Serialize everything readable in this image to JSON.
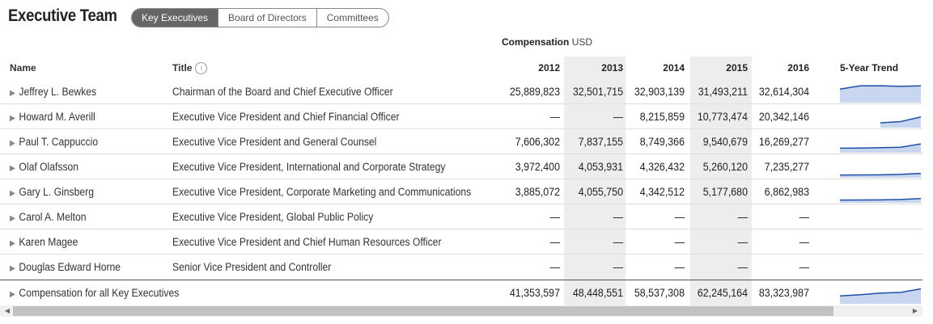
{
  "page_title": "Executive Team",
  "tabs": [
    {
      "label": "Key Executives",
      "active": true
    },
    {
      "label": "Board of Directors",
      "active": false
    },
    {
      "label": "Committees",
      "active": false
    }
  ],
  "compensation_caption": {
    "label": "Compensation",
    "unit": "USD"
  },
  "columns": {
    "name": "Name",
    "title": "Title",
    "title_info_icon": "info-icon",
    "years": [
      "2012",
      "2013",
      "2014",
      "2015",
      "2016"
    ],
    "trend": "5-Year Trend"
  },
  "rows": [
    {
      "name": "Jeffrey L. Bewkes",
      "title": "Chairman of the Board and Chief Executive Officer",
      "values": [
        "25,889,823",
        "32,501,715",
        "32,903,139",
        "31,493,211",
        "32,614,304"
      ]
    },
    {
      "name": "Howard M. Averill",
      "title": "Executive Vice President and Chief Financial Officer",
      "values": [
        "—",
        "—",
        "8,215,859",
        "10,773,474",
        "20,342,146"
      ]
    },
    {
      "name": "Paul T. Cappuccio",
      "title": "Executive Vice President and General Counsel",
      "values": [
        "7,606,302",
        "7,837,155",
        "8,749,366",
        "9,540,679",
        "16,269,277"
      ]
    },
    {
      "name": "Olaf Olafsson",
      "title": "Executive Vice President, International and Corporate Strategy",
      "values": [
        "3,972,400",
        "4,053,931",
        "4,326,432",
        "5,260,120",
        "7,235,277"
      ]
    },
    {
      "name": "Gary L. Ginsberg",
      "title": "Executive Vice President, Corporate Marketing and Communications",
      "values": [
        "3,885,072",
        "4,055,750",
        "4,342,512",
        "5,177,680",
        "6,862,983"
      ]
    },
    {
      "name": "Carol A. Melton",
      "title": "Executive Vice President, Global Public Policy",
      "values": [
        "—",
        "—",
        "—",
        "—",
        "—"
      ]
    },
    {
      "name": "Karen Magee",
      "title": "Executive Vice President and Chief Human Resources Officer",
      "values": [
        "—",
        "—",
        "—",
        "—",
        "—"
      ]
    },
    {
      "name": "Douglas Edward Horne",
      "title": "Senior Vice President and Controller",
      "values": [
        "—",
        "—",
        "—",
        "—",
        "—"
      ]
    }
  ],
  "total_row": {
    "name": "Compensation for all Key Executives",
    "values": [
      "41,353,597",
      "48,448,551",
      "58,537,308",
      "62,245,164",
      "83,323,987"
    ]
  },
  "colors": {
    "trend_line": "#1f4fa8",
    "trend_fill": "#c9d6f0",
    "shaded_column": "#ededed"
  },
  "icons": {
    "expand": "triangle-right-icon",
    "scroll_left": "scroll-left-icon",
    "scroll_right": "scroll-right-icon"
  }
}
